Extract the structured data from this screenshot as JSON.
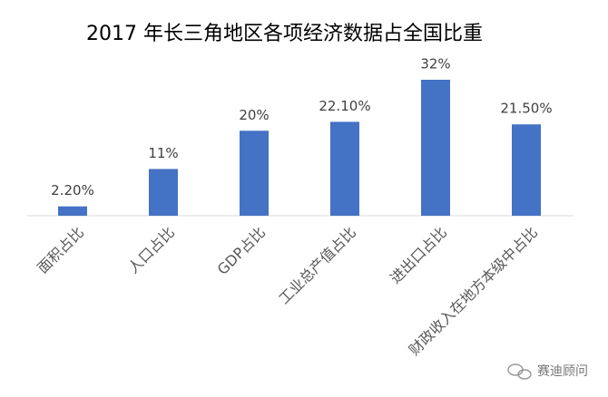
{
  "chart_data": {
    "type": "bar",
    "title": "2017 年长三角地区各项经济数据占全国比重",
    "categories": [
      "面积占比",
      "人口占比",
      "GDP占比",
      "工业总产值占比",
      "进出口占比",
      "财政收入在地方本级中占比"
    ],
    "values": [
      2.2,
      11,
      20,
      22.1,
      32,
      21.5
    ],
    "value_labels": [
      "2.20%",
      "11%",
      "20%",
      "22.10%",
      "32%",
      "21.50%"
    ],
    "color": "#4472c4",
    "watermark": "赛迪顾问"
  }
}
